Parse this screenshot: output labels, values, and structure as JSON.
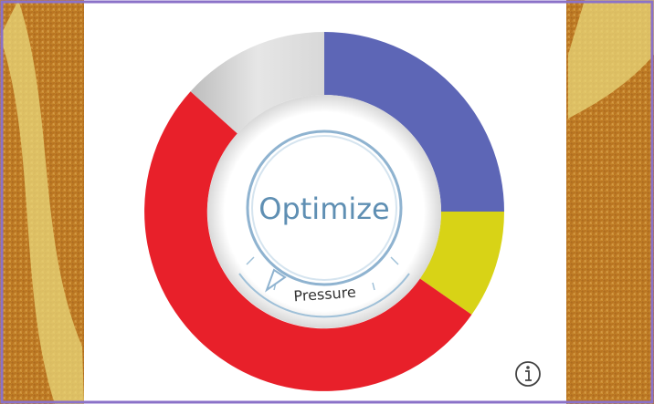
{
  "center_button": {
    "label": "Optimize"
  },
  "dial": {
    "label": "Pressure"
  }
}
